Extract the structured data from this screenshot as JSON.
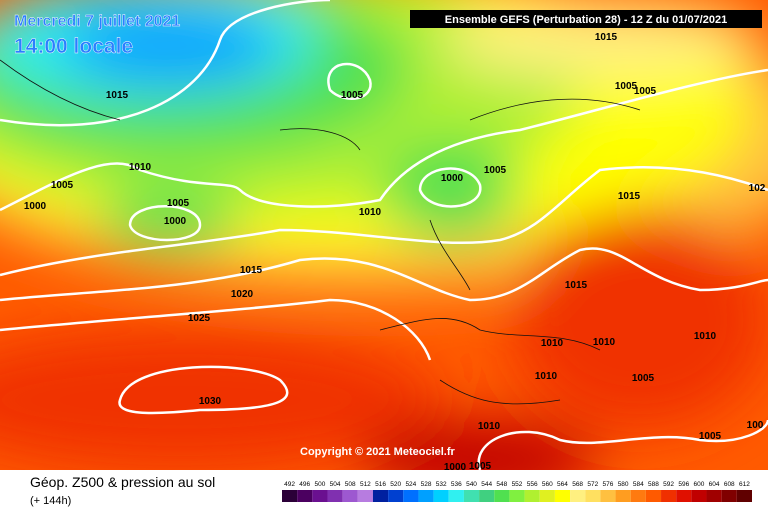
{
  "header": {
    "date": "Mercredi 7 juillet 2021",
    "time": "14:00 locale",
    "run": "Ensemble GEFS  (Perturbation 28)  -  12 Z du 01/07/2021"
  },
  "isobars": [
    1015,
    1015,
    1005,
    1005,
    1005,
    1010,
    1005,
    1000,
    1005,
    1000,
    1005,
    1000,
    1010,
    1015,
    102,
    1015,
    1020,
    1025,
    1015,
    1010,
    1010,
    1010,
    1010,
    1005,
    1030,
    1010,
    1005,
    100,
    1000,
    1005
  ],
  "copyright": "Copyright © 2021 Meteociel.fr",
  "footer": {
    "title": "Géop. Z500 & pression au sol",
    "lead": "(+ 144h)"
  },
  "legend": {
    "values": [
      492,
      496,
      500,
      504,
      508,
      512,
      516,
      520,
      524,
      528,
      532,
      536,
      540,
      544,
      548,
      552,
      556,
      560,
      564,
      568,
      572,
      576,
      580,
      584,
      588,
      592,
      596,
      600,
      604,
      608,
      612
    ],
    "colors": [
      "#2b0038",
      "#4b0060",
      "#6a1090",
      "#8030b0",
      "#9d58d0",
      "#b77ce0",
      "#0020a0",
      "#0040d0",
      "#0070ff",
      "#00a0ff",
      "#00d0ff",
      "#30f0f0",
      "#40e0b0",
      "#40d080",
      "#50e050",
      "#80f040",
      "#b0f030",
      "#e0f020",
      "#ffff00",
      "#fff080",
      "#ffe060",
      "#ffc040",
      "#ff9d20",
      "#ff7a10",
      "#ff5a00",
      "#f03000",
      "#e01000",
      "#c00000",
      "#a00000",
      "#800000",
      "#600000"
    ]
  }
}
